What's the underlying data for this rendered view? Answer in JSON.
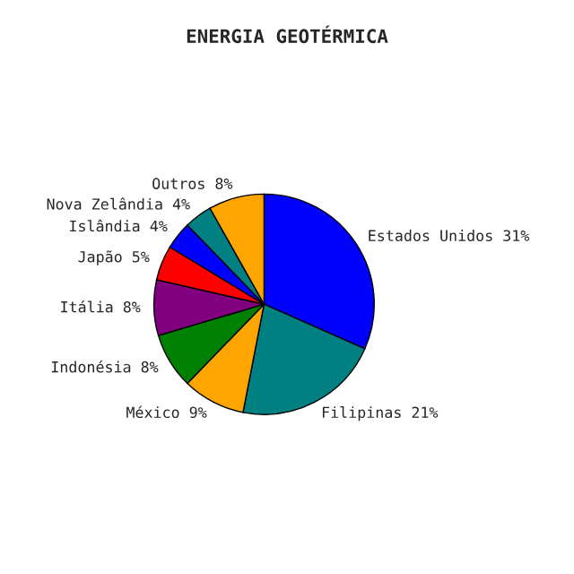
{
  "chart_data": {
    "type": "pie",
    "title": "ENERGIA GEOTÉRMICA",
    "categories": [
      "Estados Unidos",
      "Filipinas",
      "México",
      "Indonésia",
      "Itália",
      "Japão",
      "Islândia",
      "Nova Zelândia",
      "Outros"
    ],
    "values": [
      31,
      21,
      9,
      8,
      8,
      5,
      4,
      4,
      8
    ],
    "value_labels": [
      "31%",
      "21%",
      "9%",
      "8%",
      "8%",
      "5%",
      "4%",
      "4%",
      "8%"
    ],
    "colors": [
      "#0000ff",
      "#008080",
      "#ffa500",
      "#008000",
      "#800080",
      "#ff0000",
      "#0000ff",
      "#008080",
      "#ffa500"
    ],
    "legend": false
  }
}
